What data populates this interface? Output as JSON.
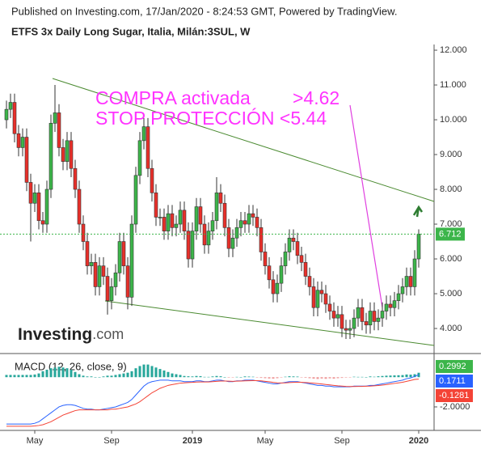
{
  "header": "Published on Investing.com, 17/Jan/2020 - 8:24:53 GMT, Powered by TradingView.",
  "logo": {
    "main": "Investing",
    "suffix": ".com"
  },
  "chart_data": {
    "type": "candlestick",
    "title": "ETFS 3x Daily Long Sugar, Italia, Milán:3SUL, W",
    "annotations": [
      "COMPRA activada",
      ">4.62",
      "STOP PROTECCIÓN <5.44"
    ],
    "categories": [
      null,
      null,
      null,
      null,
      null,
      null,
      null,
      "May",
      null,
      null,
      null,
      null,
      null,
      null,
      null,
      null,
      null,
      null,
      null,
      null,
      null,
      null,
      null,
      null,
      null,
      null,
      "Sep",
      null,
      null,
      null,
      null,
      null,
      null,
      null,
      null,
      null,
      null,
      null,
      null,
      null,
      null,
      null,
      null,
      null,
      null,
      null,
      "2019",
      null,
      null,
      null,
      null,
      null,
      null,
      null,
      null,
      null,
      null,
      null,
      null,
      null,
      null,
      null,
      null,
      null,
      "May",
      null,
      null,
      null,
      null,
      null,
      null,
      null,
      null,
      null,
      null,
      null,
      null,
      null,
      null,
      null,
      null,
      null,
      null,
      "Sep",
      null,
      null,
      null,
      null,
      null,
      null,
      null,
      null,
      null,
      null,
      null,
      null,
      null,
      null,
      null,
      null,
      null,
      null,
      "2020"
    ],
    "open": [
      10.0,
      10.3,
      10.5,
      9.6,
      9.2,
      9.5,
      8.2,
      7.6,
      7.9,
      7.1,
      7.0,
      8.0,
      9.9,
      10.2,
      9.2,
      8.8,
      9.4,
      8.6,
      8.0,
      7.0,
      6.5,
      5.8,
      5.9,
      5.2,
      5.8,
      5.5,
      4.8,
      5.2,
      5.6,
      6.5,
      5.8,
      4.9,
      7.0,
      8.4,
      9.4,
      9.8,
      8.6,
      7.9,
      7.2,
      7.2,
      6.8,
      7.3,
      6.9,
      7.0,
      7.4,
      6.8,
      6.0,
      6.8,
      7.5,
      7.0,
      6.4,
      6.8,
      7.1,
      7.9,
      7.6,
      6.9,
      6.3,
      6.6,
      6.9,
      7.1,
      7.0,
      7.3,
      7.2,
      6.9,
      6.2,
      5.8,
      5.4,
      5.0,
      5.3,
      5.8,
      6.2,
      6.6,
      6.5,
      6.1,
      5.9,
      5.5,
      5.2,
      4.6,
      5.1,
      5.0,
      4.7,
      4.5,
      4.3,
      4.4,
      4.0,
      3.95,
      4.0,
      4.3,
      4.6,
      4.2,
      4.1,
      4.5,
      4.2,
      4.3,
      4.5,
      4.7,
      4.6,
      4.8,
      5.0,
      5.2,
      5.5,
      5.2,
      6.0
    ],
    "high": [
      10.55,
      10.75,
      10.75,
      9.85,
      9.75,
      9.75,
      8.45,
      8.15,
      8.15,
      7.35,
      8.25,
      10.15,
      11.0,
      10.45,
      9.45,
      9.65,
      9.65,
      8.85,
      8.25,
      7.25,
      6.75,
      6.15,
      6.15,
      6.05,
      6.05,
      5.75,
      5.45,
      5.85,
      6.75,
      6.75,
      6.05,
      7.25,
      8.65,
      9.65,
      10.05,
      10.05,
      8.85,
      8.15,
      7.45,
      7.45,
      7.55,
      7.55,
      7.25,
      7.65,
      7.65,
      7.05,
      7.05,
      7.75,
      7.75,
      7.25,
      7.05,
      7.35,
      8.35,
      8.15,
      7.85,
      7.15,
      6.85,
      7.15,
      7.35,
      7.35,
      7.55,
      7.55,
      7.45,
      7.15,
      6.45,
      6.05,
      5.65,
      5.55,
      6.05,
      6.45,
      6.85,
      6.85,
      6.75,
      6.35,
      6.15,
      5.75,
      5.45,
      5.35,
      5.35,
      5.25,
      4.95,
      4.75,
      4.65,
      4.65,
      4.25,
      4.25,
      4.55,
      4.85,
      4.85,
      4.45,
      4.75,
      4.75,
      4.55,
      4.75,
      4.95,
      4.95,
      5.05,
      5.25,
      5.45,
      5.75,
      5.75,
      6.25,
      6.85
    ],
    "low": [
      9.75,
      10.05,
      9.35,
      8.95,
      8.95,
      7.95,
      6.5,
      7.35,
      6.85,
      6.75,
      6.75,
      7.75,
      9.65,
      8.95,
      8.55,
      8.55,
      8.35,
      7.75,
      6.75,
      6.25,
      5.55,
      5.55,
      4.95,
      4.95,
      5.25,
      4.4,
      4.55,
      4.95,
      5.35,
      5.55,
      4.55,
      4.65,
      6.75,
      8.15,
      9.15,
      8.35,
      7.65,
      6.95,
      6.95,
      6.55,
      6.55,
      6.65,
      6.65,
      6.75,
      6.55,
      5.75,
      5.75,
      6.55,
      6.75,
      6.15,
      6.15,
      6.55,
      6.85,
      7.35,
      6.65,
      6.05,
      6.05,
      6.35,
      6.65,
      6.75,
      6.75,
      6.95,
      6.65,
      5.95,
      5.55,
      5.15,
      4.75,
      4.75,
      5.05,
      5.55,
      5.95,
      6.25,
      5.85,
      5.65,
      5.25,
      4.95,
      4.35,
      4.35,
      4.75,
      4.45,
      4.25,
      4.05,
      4.05,
      3.75,
      3.7,
      3.7,
      3.75,
      4.05,
      3.95,
      3.85,
      3.85,
      3.95,
      3.95,
      4.05,
      4.25,
      4.35,
      4.35,
      4.55,
      4.75,
      4.95,
      4.95,
      4.95,
      5.75
    ],
    "close": [
      10.3,
      10.5,
      9.6,
      9.2,
      9.5,
      8.2,
      7.6,
      7.9,
      7.1,
      7.0,
      8.0,
      9.9,
      10.2,
      9.2,
      8.8,
      9.4,
      8.6,
      8.0,
      7.0,
      6.5,
      5.8,
      5.9,
      5.2,
      5.8,
      5.5,
      4.8,
      5.2,
      5.6,
      6.5,
      5.8,
      4.9,
      7.0,
      8.4,
      9.4,
      9.8,
      8.6,
      7.9,
      7.2,
      7.2,
      6.8,
      7.3,
      6.9,
      7.0,
      7.4,
      6.8,
      6.0,
      6.8,
      7.5,
      7.0,
      6.4,
      6.8,
      7.1,
      7.9,
      7.6,
      6.9,
      6.3,
      6.6,
      6.9,
      7.1,
      7.0,
      7.3,
      7.2,
      6.9,
      6.2,
      5.8,
      5.4,
      5.0,
      5.3,
      5.8,
      6.2,
      6.6,
      6.5,
      6.1,
      5.9,
      5.5,
      5.2,
      4.6,
      5.1,
      5.0,
      4.7,
      4.5,
      4.3,
      4.4,
      4.0,
      3.95,
      4.0,
      4.3,
      4.6,
      4.2,
      4.1,
      4.5,
      4.2,
      4.3,
      4.5,
      4.7,
      4.6,
      4.8,
      5.0,
      5.2,
      5.5,
      5.2,
      6.0,
      6.712
    ],
    "up_color": "#3cb54a",
    "down_color": "#e8302a",
    "ylim": [
      3.28,
      12.28
    ],
    "yticks": [
      {
        "value": 4,
        "label": "4.000"
      },
      {
        "value": 5,
        "label": "5.000"
      },
      {
        "value": 6,
        "label": "6.000"
      },
      {
        "value": 7,
        "label": "7.000"
      },
      {
        "value": 8,
        "label": "8.000"
      },
      {
        "value": 9,
        "label": "9.000"
      },
      {
        "value": 10,
        "label": "10.000"
      },
      {
        "value": 11,
        "label": "11.000"
      },
      {
        "value": 12,
        "label": "12.000"
      }
    ],
    "macd": {
      "label": "MACD (12, 26, close, 9)",
      "ylim": [
        -3.58,
        1.59
      ],
      "yticks": [
        {
          "value": -2,
          "label": "-2.0000"
        }
      ],
      "series": [
        {
          "name": "Histogram",
          "type": "bar",
          "color": "#26a69a",
          "values": [
            0.15,
            0.15,
            0.15,
            0.15,
            0.15,
            0.15,
            0.15,
            0.18,
            0.25,
            0.4,
            0.5,
            0.6,
            0.65,
            0.7,
            0.65,
            0.6,
            0.5,
            0.35,
            0.2,
            0.1,
            0.05,
            0.05,
            0,
            0,
            0.05,
            0.1,
            0.1,
            0.15,
            0.2,
            0.25,
            0.3,
            0.4,
            0.6,
            0.75,
            0.85,
            0.85,
            0.75,
            0.65,
            0.55,
            0.45,
            0.35,
            0.25,
            0.2,
            0.15,
            0.08,
            0.06,
            0.05,
            0.08,
            0.07,
            0.02,
            0.02,
            0.05,
            0.08,
            0.06,
            0.01,
            -0.03,
            -0.02,
            0.02,
            0.01,
            0.05,
            0.04,
            0.03,
            -0.02,
            -0.05,
            -0.07,
            -0.09,
            -0.1,
            -0.07,
            -0.01,
            0.03,
            0.06,
            0.05,
            0.04,
            -0.01,
            -0.04,
            -0.07,
            -0.1,
            -0.12,
            -0.09,
            -0.11,
            -0.08,
            -0.1,
            -0.07,
            -0.05,
            -0.03,
            -0.02,
            0.03,
            0.02,
            0.02,
            0.01,
            0.05,
            0.03,
            0.06,
            0.08,
            0.1,
            0.11,
            0.12,
            0.13,
            0.14,
            0.18,
            0.17,
            0.2,
            0.2992
          ]
        },
        {
          "name": "MACD",
          "type": "line",
          "color": "#2962ff",
          "values": [
            -3.15,
            -3.15,
            -3.15,
            -3.15,
            -3.15,
            -3.15,
            -3.15,
            -3.1,
            -3.0,
            -2.8,
            -2.6,
            -2.4,
            -2.2,
            -2.0,
            -1.9,
            -1.85,
            -1.85,
            -1.9,
            -2.0,
            -2.1,
            -2.15,
            -2.15,
            -2.2,
            -2.2,
            -2.15,
            -2.1,
            -2.05,
            -2.0,
            -1.9,
            -1.8,
            -1.7,
            -1.5,
            -1.2,
            -0.9,
            -0.6,
            -0.4,
            -0.3,
            -0.25,
            -0.2,
            -0.2,
            -0.2,
            -0.25,
            -0.25,
            -0.25,
            -0.3,
            -0.3,
            -0.3,
            -0.25,
            -0.25,
            -0.3,
            -0.3,
            -0.25,
            -0.2,
            -0.2,
            -0.25,
            -0.3,
            -0.3,
            -0.25,
            -0.25,
            -0.2,
            -0.2,
            -0.2,
            -0.25,
            -0.3,
            -0.35,
            -0.4,
            -0.45,
            -0.45,
            -0.4,
            -0.35,
            -0.3,
            -0.3,
            -0.3,
            -0.35,
            -0.4,
            -0.45,
            -0.5,
            -0.55,
            -0.55,
            -0.6,
            -0.6,
            -0.65,
            -0.65,
            -0.65,
            -0.65,
            -0.65,
            -0.6,
            -0.6,
            -0.6,
            -0.6,
            -0.55,
            -0.55,
            -0.5,
            -0.45,
            -0.4,
            -0.35,
            -0.3,
            -0.25,
            -0.2,
            -0.1,
            -0.05,
            0.05,
            0.1711
          ]
        },
        {
          "name": "Signal",
          "type": "line",
          "color": "#f44336",
          "values": [
            -3.3,
            -3.3,
            -3.3,
            -3.3,
            -3.3,
            -3.3,
            -3.3,
            -3.28,
            -3.25,
            -3.2,
            -3.1,
            -3.0,
            -2.85,
            -2.7,
            -2.55,
            -2.45,
            -2.35,
            -2.25,
            -2.2,
            -2.2,
            -2.2,
            -2.2,
            -2.2,
            -2.2,
            -2.2,
            -2.2,
            -2.15,
            -2.15,
            -2.1,
            -2.05,
            -2.0,
            -1.9,
            -1.8,
            -1.65,
            -1.45,
            -1.25,
            -1.05,
            -0.9,
            -0.75,
            -0.65,
            -0.55,
            -0.5,
            -0.45,
            -0.4,
            -0.38,
            -0.36,
            -0.35,
            -0.33,
            -0.32,
            -0.32,
            -0.32,
            -0.3,
            -0.28,
            -0.26,
            -0.26,
            -0.27,
            -0.28,
            -0.27,
            -0.26,
            -0.25,
            -0.24,
            -0.23,
            -0.23,
            -0.25,
            -0.28,
            -0.31,
            -0.35,
            -0.38,
            -0.39,
            -0.38,
            -0.36,
            -0.35,
            -0.34,
            -0.34,
            -0.36,
            -0.38,
            -0.4,
            -0.43,
            -0.46,
            -0.49,
            -0.52,
            -0.55,
            -0.58,
            -0.6,
            -0.62,
            -0.63,
            -0.63,
            -0.62,
            -0.62,
            -0.61,
            -0.6,
            -0.58,
            -0.56,
            -0.53,
            -0.5,
            -0.46,
            -0.42,
            -0.38,
            -0.34,
            -0.28,
            -0.22,
            -0.15,
            -0.1281
          ]
        }
      ]
    }
  }
}
